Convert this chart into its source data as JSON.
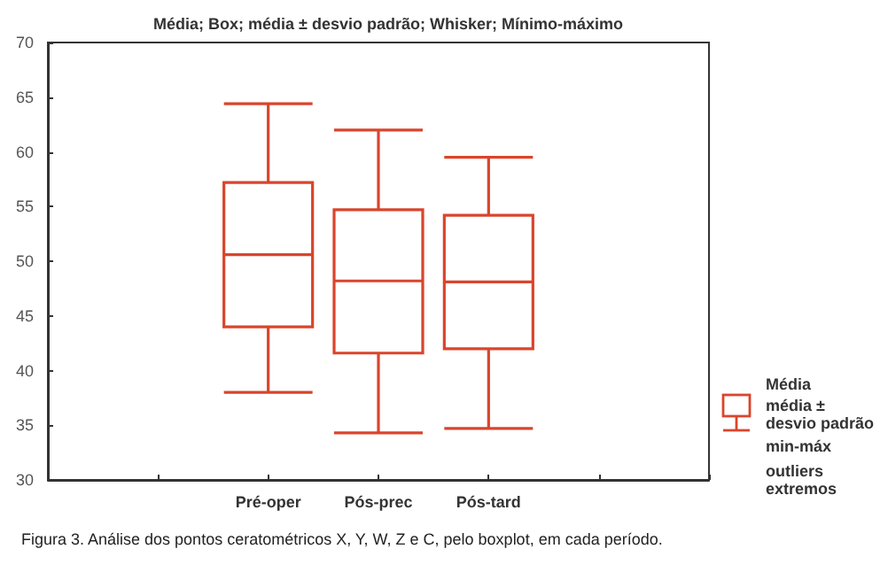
{
  "chart_data": {
    "type": "box",
    "title": "Média; Box; média ± desvio padrão; Whisker; Mínimo-máximo",
    "categories": [
      null,
      null,
      "Pré-oper",
      "Pós-prec",
      "Pós-tard",
      null,
      null
    ],
    "boxes": [
      null,
      null,
      {
        "low": 38,
        "q1": 44,
        "median": 50.6,
        "q3": 57.2,
        "high": 64.4
      },
      {
        "low": 34.3,
        "q1": 41.6,
        "median": 48.2,
        "q3": 54.7,
        "high": 62
      },
      {
        "low": 34.7,
        "q1": 42,
        "median": 48.1,
        "q3": 54.2,
        "high": 59.5
      },
      null,
      null
    ],
    "color": "#d9452c",
    "ylim": [
      30,
      70
    ],
    "yticks": [
      30,
      35,
      40,
      45,
      50,
      55,
      60,
      65,
      70
    ],
    "grid": false,
    "annotations": [
      "Média",
      "média ± desvio padrão",
      "min-máx",
      "outliers extremos",
      "Figura 3. Análise dos pontos ceratométricos X, Y, W, Z e C, pelo boxplot, em cada período."
    ]
  }
}
